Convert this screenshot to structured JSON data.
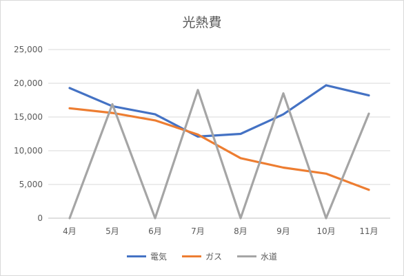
{
  "chart_data": {
    "type": "line",
    "title": "光熱費",
    "categories": [
      "4月",
      "5月",
      "6月",
      "7月",
      "8月",
      "9月",
      "10月",
      "11月"
    ],
    "series": [
      {
        "name": "電気",
        "color": "#4472C4",
        "values": [
          19300,
          16600,
          15400,
          12100,
          12500,
          15400,
          19700,
          18200
        ]
      },
      {
        "name": "ガス",
        "color": "#ED7D31",
        "values": [
          16300,
          15600,
          14500,
          12400,
          8900,
          7500,
          6600,
          4200
        ]
      },
      {
        "name": "水道",
        "color": "#A5A5A5",
        "values": [
          0,
          16900,
          0,
          19000,
          0,
          18500,
          0,
          15500
        ]
      }
    ],
    "ylim": [
      0,
      25000
    ],
    "yticks": [
      "0",
      "5,000",
      "10,000",
      "15,000",
      "20,000",
      "25,000"
    ],
    "grid": true,
    "legend": "bottom"
  }
}
